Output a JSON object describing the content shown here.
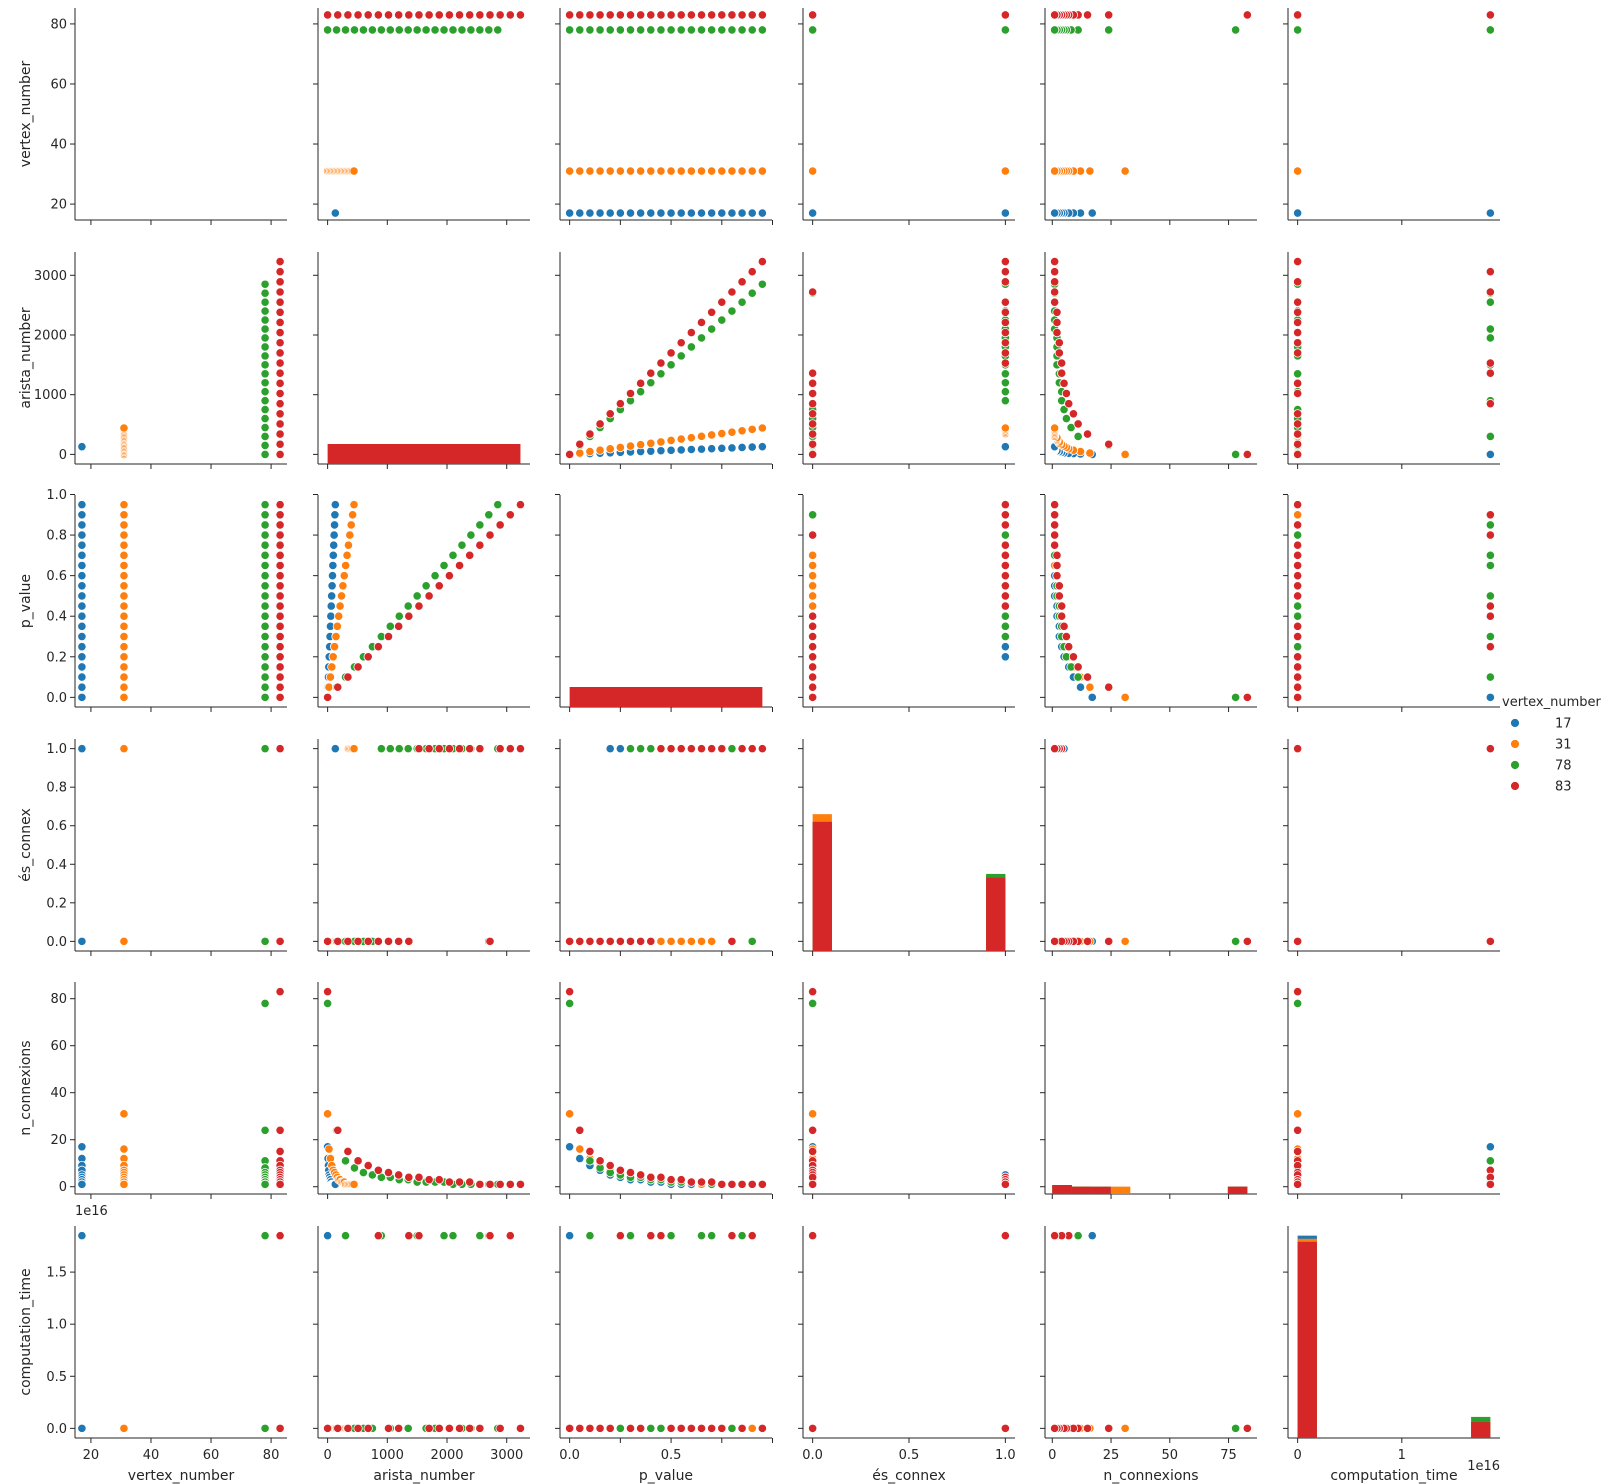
{
  "chart_data": {
    "type": "scatter",
    "kind": "pairplot",
    "variables": [
      "vertex_number",
      "arista_number",
      "p_value",
      "és_connex",
      "n_connexions",
      "computation_time"
    ],
    "axis_labels": {
      "vertex_number": "vertex_number",
      "arista_number": "arista_number",
      "p_value": "p_value",
      "es_connex": "és_connex",
      "n_connexions": "n_connexions",
      "computation_time": "computation_time"
    },
    "offset_labels": {
      "computation_time": "1e16"
    },
    "axes": {
      "vertex_number": {
        "range": [
          14.7,
          85.3
        ],
        "ticks": [
          20,
          40,
          60,
          80
        ],
        "tick_labels": [
          "20",
          "40",
          "60",
          "80"
        ]
      },
      "arista_number": {
        "range": [
          -161,
          3390
        ],
        "ticks": [
          0,
          1000,
          2000,
          3000
        ],
        "tick_labels": [
          "0",
          "1000",
          "2000",
          "3000"
        ]
      },
      "p_value": {
        "range": [
          -0.0475,
          0.9975
        ],
        "ticks": [
          0.0,
          0.2,
          0.4,
          0.6,
          0.8,
          1.0
        ],
        "tick_labels": [
          "0.0",
          "0.2",
          "0.4",
          "0.6",
          "0.8",
          "1.0"
        ],
        "xtick_labels": [
          "0.0",
          "",
          "0.5",
          "",
          "",
          "1.0"
        ],
        "xticks": [
          0.0,
          0.25,
          0.5,
          0.75,
          1.0
        ]
      },
      "es_connex": {
        "range": [
          -0.05,
          1.05
        ],
        "ticks": [
          0.0,
          0.2,
          0.4,
          0.6,
          0.8,
          1.0
        ],
        "tick_labels": [
          "0.0",
          "0.2",
          "0.4",
          "0.6",
          "0.8",
          "1.0"
        ],
        "xticks": [
          0.0,
          0.5,
          1.0
        ],
        "xtick_labels": [
          "0.0",
          "0.5",
          "1.0"
        ]
      },
      "n_connexions": {
        "range": [
          -3.1,
          87.1
        ],
        "ticks": [
          0,
          20,
          40,
          60,
          80
        ],
        "tick_labels": [
          "0",
          "20",
          "40",
          "60",
          "80"
        ],
        "xticks": [
          0,
          25,
          50,
          75
        ],
        "xtick_labels": [
          "0",
          "25",
          "50",
          "75"
        ]
      },
      "computation_time": {
        "range": [
          -0.0925,
          1.9425
        ],
        "ticks": [
          0.0,
          0.5,
          1.0,
          1.5
        ],
        "tick_labels": [
          "0.0",
          "0.5",
          "1.0",
          "1.5"
        ],
        "xticks": [
          0,
          1
        ],
        "xtick_labels": [
          "0",
          "1"
        ]
      }
    },
    "hue": {
      "title": "vertex_number",
      "levels": [
        "17",
        "31",
        "78",
        "83"
      ],
      "colors": [
        "#1f77b4",
        "#ff7f0e",
        "#2ca02c",
        "#d62728"
      ],
      "legend_position": "right"
    },
    "series": [
      {
        "name": "17",
        "vertex_number": 17,
        "arista_number": [
          0,
          7,
          14,
          20,
          27,
          34,
          41,
          48,
          54,
          61,
          68,
          75,
          82,
          88,
          95,
          102,
          109,
          116,
          122,
          129
        ],
        "p_value": [
          0.0,
          0.05,
          0.1,
          0.15,
          0.2,
          0.25,
          0.3,
          0.35,
          0.4,
          0.45,
          0.5,
          0.55,
          0.6,
          0.65,
          0.7,
          0.75,
          0.8,
          0.85,
          0.9,
          0.95
        ],
        "es_connex": [
          0,
          0,
          0,
          0,
          1,
          1,
          1,
          1,
          1,
          1,
          1,
          1,
          1,
          1,
          1,
          1,
          1,
          1,
          1,
          1
        ],
        "n_connexions": [
          17,
          12,
          9,
          7,
          5,
          4,
          3,
          3,
          2,
          2,
          1,
          1,
          1,
          1,
          1,
          1,
          1,
          1,
          1,
          1
        ],
        "computation_time": [
          1.85,
          0,
          0,
          0,
          0,
          0,
          0,
          0,
          0,
          0,
          0,
          0,
          0,
          0,
          0,
          0,
          0,
          0,
          0,
          0
        ]
      },
      {
        "name": "31",
        "vertex_number": 31,
        "arista_number": [
          0,
          23,
          47,
          70,
          93,
          116,
          140,
          163,
          186,
          209,
          233,
          256,
          279,
          302,
          326,
          349,
          372,
          395,
          419,
          442
        ],
        "p_value": [
          0.0,
          0.05,
          0.1,
          0.15,
          0.2,
          0.25,
          0.3,
          0.35,
          0.4,
          0.45,
          0.5,
          0.55,
          0.6,
          0.65,
          0.7,
          0.75,
          0.8,
          0.85,
          0.9,
          0.95
        ],
        "es_connex": [
          0,
          0,
          0,
          0,
          0,
          0,
          0,
          0,
          0,
          0,
          0,
          0,
          0,
          0,
          0,
          1,
          1,
          1,
          1,
          1
        ],
        "n_connexions": [
          31,
          16,
          12,
          9,
          7,
          6,
          5,
          4,
          3,
          3,
          2,
          2,
          2,
          1,
          1,
          1,
          1,
          1,
          1,
          1
        ],
        "computation_time": [
          0,
          0,
          0,
          0,
          0,
          0,
          0,
          0,
          0,
          0,
          0,
          0,
          0,
          0,
          0,
          0,
          0,
          0,
          0,
          0
        ]
      },
      {
        "name": "78",
        "vertex_number": 78,
        "arista_number": [
          0,
          150,
          300,
          450,
          600,
          750,
          900,
          1050,
          1200,
          1350,
          1500,
          1650,
          1800,
          1950,
          2100,
          2250,
          2400,
          2550,
          2700,
          2850
        ],
        "p_value": [
          0.0,
          0.05,
          0.1,
          0.15,
          0.2,
          0.25,
          0.3,
          0.35,
          0.4,
          0.45,
          0.5,
          0.55,
          0.6,
          0.65,
          0.7,
          0.75,
          0.8,
          0.85,
          0.9,
          0.95
        ],
        "es_connex": [
          0,
          0,
          0,
          0,
          0,
          0,
          1,
          1,
          1,
          1,
          1,
          1,
          1,
          1,
          1,
          1,
          1,
          1,
          0,
          1
        ],
        "n_connexions": [
          78,
          24,
          11,
          8,
          6,
          5,
          4,
          4,
          3,
          3,
          2,
          2,
          2,
          2,
          1,
          1,
          1,
          1,
          1,
          1
        ],
        "computation_time": [
          0,
          0,
          1.85,
          0,
          0,
          0,
          1.85,
          0,
          0,
          0,
          1.85,
          0,
          0,
          1.85,
          1.85,
          0,
          0,
          1.85,
          1.85,
          0
        ]
      },
      {
        "name": "83",
        "vertex_number": 83,
        "arista_number": [
          0,
          170,
          340,
          510,
          680,
          850,
          1020,
          1190,
          1360,
          1530,
          1700,
          1870,
          2040,
          2210,
          2380,
          2550,
          2720,
          2890,
          3060,
          3230
        ],
        "p_value": [
          0.0,
          0.05,
          0.1,
          0.15,
          0.2,
          0.25,
          0.3,
          0.35,
          0.4,
          0.45,
          0.5,
          0.55,
          0.6,
          0.65,
          0.7,
          0.75,
          0.8,
          0.85,
          0.9,
          0.95
        ],
        "es_connex": [
          0,
          0,
          0,
          0,
          0,
          0,
          0,
          0,
          0,
          1,
          1,
          1,
          1,
          1,
          1,
          1,
          0,
          1,
          1,
          1
        ],
        "n_connexions": [
          83,
          24,
          15,
          11,
          9,
          7,
          6,
          5,
          4,
          4,
          3,
          3,
          2,
          2,
          2,
          1,
          1,
          1,
          1,
          1
        ],
        "computation_time": [
          0,
          0,
          0,
          0,
          0,
          1.85,
          0,
          0,
          1.85,
          1.85,
          0,
          0,
          0,
          0,
          0,
          0,
          1.85,
          0,
          1.85,
          0
        ]
      }
    ],
    "diagonal_histograms": {
      "vertex_number": {
        "bins": [],
        "counts": {}
      },
      "arista_number": {
        "bins": [
          [
            0,
            3230
          ]
        ],
        "counts": {
          "83": [
            20
          ]
        }
      },
      "p_value": {
        "bins": [
          [
            0,
            0.95
          ]
        ],
        "counts": {
          "83": [
            20
          ]
        }
      },
      "es_connex": {
        "bins": [
          [
            0.0,
            0.1
          ],
          [
            0.9,
            1.0
          ]
        ],
        "counts": {
          "17": [
            0.62,
            0.33
          ],
          "31": [
            0.66,
            0.34
          ],
          "78": [
            0.62,
            0.35
          ],
          "83": [
            0.62,
            0.33
          ]
        }
      },
      "n_connexions": {
        "bins": [
          [
            0,
            8.3
          ],
          [
            8.3,
            16.6
          ],
          [
            16.6,
            24.9
          ],
          [
            24.9,
            33.2
          ],
          [
            74.7,
            83
          ]
        ],
        "counts": {
          "17": [
            0.72,
            0.01,
            0,
            0,
            0
          ],
          "31": [
            0.72,
            0.01,
            0,
            0.035,
            0
          ],
          "78": [
            0.73,
            0.01,
            0.03,
            0,
            0.035
          ],
          "83": [
            0.72,
            0.01,
            0.01,
            0,
            0.035
          ]
        }
      },
      "computation_time": {
        "bins": [
          [
            0,
            0.185
          ],
          [
            1.665,
            1.85
          ]
        ],
        "counts": {
          "17": [
            1.85,
            0
          ],
          "31": [
            1.82,
            0
          ],
          "78": [
            1.79,
            0.11
          ],
          "83": [
            1.79,
            0.06
          ]
        }
      }
    }
  }
}
